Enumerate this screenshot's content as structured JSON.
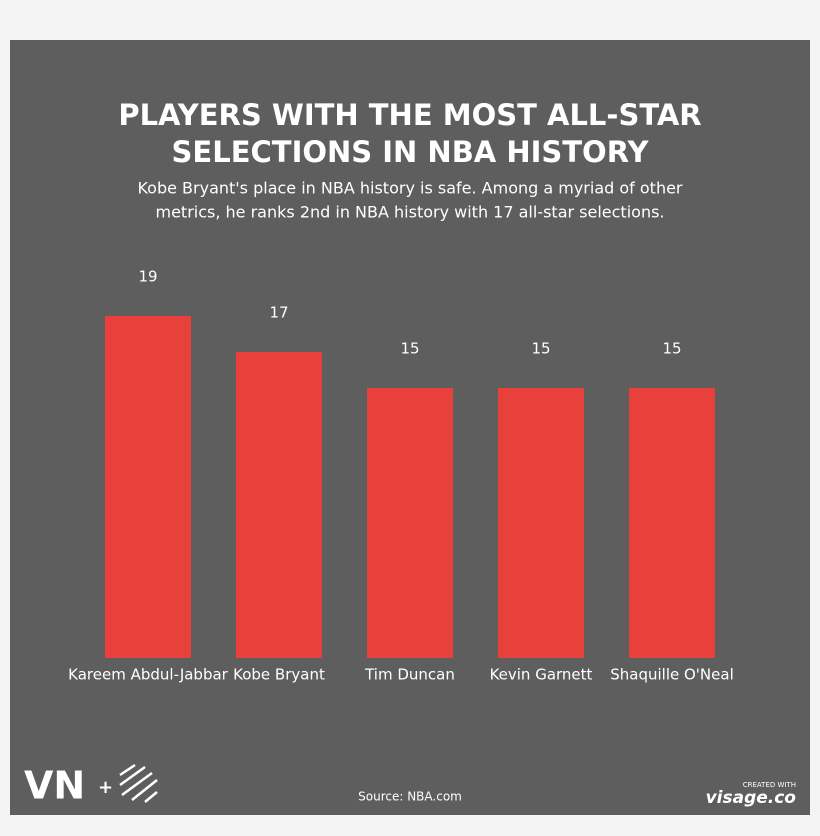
{
  "chart_data": {
    "type": "bar",
    "title": [
      "PLAYERS WITH THE MOST ALL-STAR",
      "SELECTIONS IN NBA HISTORY"
    ],
    "subtitle": [
      "Kobe Bryant's place in NBA history is safe. Among a myriad of other",
      "metrics, he ranks 2nd in NBA history with 17 all-star selections."
    ],
    "categories": [
      "Kareem Abdul-Jabbar",
      "Kobe Bryant",
      "Tim Duncan",
      "Kevin Garnett",
      "Shaquille O'Neal"
    ],
    "values": [
      19,
      17,
      15,
      15,
      15
    ],
    "color": "#e8403a",
    "source": "Source: NBA.com",
    "logo": [
      "VN",
      "+"
    ],
    "credit": [
      "CREATED WITH",
      "visage.co"
    ]
  }
}
